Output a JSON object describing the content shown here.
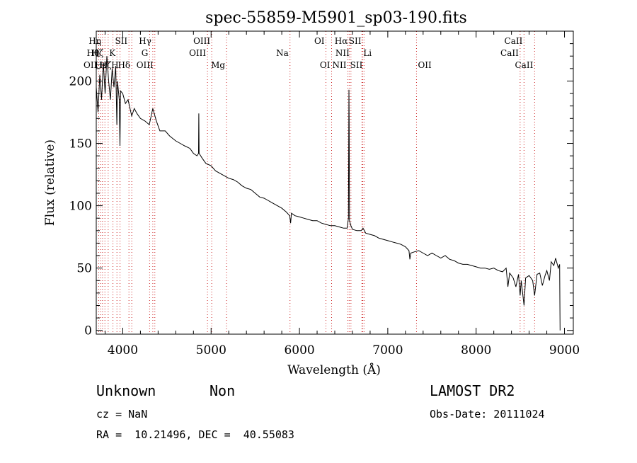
{
  "chart_data": {
    "type": "line",
    "title": "spec-55859-M5901_sp03-190.fits",
    "xlabel": "Wavelength (Å)",
    "ylabel": "Flux (relative)",
    "xlim": [
      3700,
      9100
    ],
    "ylim": [
      -3,
      240
    ],
    "xticks": [
      4000,
      5000,
      6000,
      7000,
      8000,
      9000
    ],
    "yticks": [
      0,
      50,
      100,
      150,
      200
    ],
    "grid": false,
    "series": [
      {
        "values": [
          [
            3700,
            195
          ],
          [
            3720,
            175
          ],
          [
            3740,
            205
          ],
          [
            3760,
            185
          ],
          [
            3780,
            215
          ],
          [
            3800,
            190
          ],
          [
            3820,
            220
          ],
          [
            3840,
            200
          ],
          [
            3860,
            185
          ],
          [
            3880,
            210
          ],
          [
            3900,
            195
          ],
          [
            3920,
            212
          ],
          [
            3933,
            165
          ],
          [
            3940,
            200
          ],
          [
            3960,
            185
          ],
          [
            3968,
            148
          ],
          [
            3975,
            192
          ],
          [
            4000,
            190
          ],
          [
            4030,
            182
          ],
          [
            4060,
            185
          ],
          [
            4101,
            172
          ],
          [
            4130,
            178
          ],
          [
            4160,
            174
          ],
          [
            4200,
            170
          ],
          [
            4250,
            168
          ],
          [
            4300,
            165
          ],
          [
            4340,
            178
          ],
          [
            4380,
            168
          ],
          [
            4420,
            160
          ],
          [
            4480,
            160
          ],
          [
            4530,
            156
          ],
          [
            4600,
            152
          ],
          [
            4650,
            150
          ],
          [
            4700,
            148
          ],
          [
            4760,
            146
          ],
          [
            4800,
            142
          ],
          [
            4840,
            140
          ],
          [
            4858,
            142
          ],
          [
            4861,
            174
          ],
          [
            4864,
            142
          ],
          [
            4900,
            138
          ],
          [
            4940,
            134
          ],
          [
            5000,
            132
          ],
          [
            5050,
            128
          ],
          [
            5100,
            126
          ],
          [
            5150,
            124
          ],
          [
            5200,
            122
          ],
          [
            5250,
            121
          ],
          [
            5300,
            119
          ],
          [
            5350,
            116
          ],
          [
            5400,
            114
          ],
          [
            5450,
            113
          ],
          [
            5500,
            110
          ],
          [
            5550,
            107
          ],
          [
            5600,
            106
          ],
          [
            5650,
            104
          ],
          [
            5700,
            102
          ],
          [
            5750,
            100
          ],
          [
            5800,
            98
          ],
          [
            5850,
            95
          ],
          [
            5890,
            92
          ],
          [
            5900,
            86
          ],
          [
            5910,
            94
          ],
          [
            5950,
            92
          ],
          [
            6000,
            91
          ],
          [
            6050,
            90
          ],
          [
            6100,
            89
          ],
          [
            6150,
            88
          ],
          [
            6200,
            88
          ],
          [
            6250,
            86
          ],
          [
            6300,
            85
          ],
          [
            6350,
            84
          ],
          [
            6400,
            84
          ],
          [
            6450,
            83
          ],
          [
            6500,
            82
          ],
          [
            6540,
            82
          ],
          [
            6555,
            90
          ],
          [
            6560,
            193
          ],
          [
            6563,
            168
          ],
          [
            6567,
            88
          ],
          [
            6583,
            84
          ],
          [
            6600,
            81
          ],
          [
            6650,
            80
          ],
          [
            6700,
            80
          ],
          [
            6720,
            82
          ],
          [
            6750,
            78
          ],
          [
            6800,
            77
          ],
          [
            6850,
            76
          ],
          [
            6900,
            74
          ],
          [
            6950,
            73
          ],
          [
            7000,
            72
          ],
          [
            7050,
            71
          ],
          [
            7100,
            70
          ],
          [
            7150,
            69
          ],
          [
            7200,
            67
          ],
          [
            7240,
            64
          ],
          [
            7250,
            57
          ],
          [
            7260,
            62
          ],
          [
            7300,
            63
          ],
          [
            7350,
            64
          ],
          [
            7400,
            62
          ],
          [
            7450,
            60
          ],
          [
            7500,
            62
          ],
          [
            7550,
            60
          ],
          [
            7600,
            58
          ],
          [
            7650,
            60
          ],
          [
            7700,
            57
          ],
          [
            7750,
            56
          ],
          [
            7800,
            54
          ],
          [
            7850,
            53
          ],
          [
            7900,
            53
          ],
          [
            7950,
            52
          ],
          [
            8000,
            51
          ],
          [
            8050,
            50
          ],
          [
            8100,
            50
          ],
          [
            8150,
            49
          ],
          [
            8200,
            50
          ],
          [
            8250,
            48
          ],
          [
            8300,
            47
          ],
          [
            8340,
            50
          ],
          [
            8360,
            35
          ],
          [
            8380,
            46
          ],
          [
            8420,
            42
          ],
          [
            8450,
            35
          ],
          [
            8480,
            45
          ],
          [
            8498,
            28
          ],
          [
            8510,
            40
          ],
          [
            8542,
            20
          ],
          [
            8560,
            42
          ],
          [
            8600,
            44
          ],
          [
            8640,
            40
          ],
          [
            8662,
            28
          ],
          [
            8690,
            45
          ],
          [
            8720,
            46
          ],
          [
            8750,
            36
          ],
          [
            8780,
            44
          ],
          [
            8800,
            48
          ],
          [
            8830,
            40
          ],
          [
            8850,
            55
          ],
          [
            8880,
            52
          ],
          [
            8900,
            58
          ],
          [
            8930,
            50
          ],
          [
            8945,
            53
          ],
          [
            8950,
            0
          ]
        ]
      }
    ],
    "lines": [
      {
        "wavelength": 3727,
        "label": "OII",
        "row": 3,
        "side": "left"
      },
      {
        "wavelength": 3750,
        "label": "Hθ",
        "row": 2,
        "side": "left"
      },
      {
        "wavelength": 3771,
        "label": "Hη",
        "row": 1,
        "side": "left"
      },
      {
        "wavelength": 3798,
        "label": "Hζ",
        "row": 2,
        "side": "left"
      },
      {
        "wavelength": 3835,
        "label": "Hε",
        "row": 3,
        "side": "left"
      },
      {
        "wavelength": 3889,
        "label": "Hζ",
        "row": 3,
        "side": "left"
      },
      {
        "wavelength": 3934,
        "label": "K",
        "row": 2,
        "side": "left"
      },
      {
        "wavelength": 3969,
        "label": "H",
        "row": 3,
        "side": "left"
      },
      {
        "wavelength": 4070,
        "label": "SII",
        "row": 1,
        "side": "left"
      },
      {
        "wavelength": 4102,
        "label": "Hδ",
        "row": 3,
        "side": "left"
      },
      {
        "wavelength": 4304,
        "label": "G",
        "row": 2,
        "side": "left"
      },
      {
        "wavelength": 4340,
        "label": "Hγ",
        "row": 1,
        "side": "left"
      },
      {
        "wavelength": 4363,
        "label": "OIII",
        "row": 3,
        "side": "left"
      },
      {
        "wavelength": 4959,
        "label": "OIII",
        "row": 2,
        "side": "left"
      },
      {
        "wavelength": 5007,
        "label": "OIII",
        "row": 1,
        "side": "left"
      },
      {
        "wavelength": 5175,
        "label": "Mg",
        "row": 3,
        "side": "left"
      },
      {
        "wavelength": 5893,
        "label": "Na",
        "row": 2,
        "side": "left"
      },
      {
        "wavelength": 6300,
        "label": "OI",
        "row": 1,
        "side": "left"
      },
      {
        "wavelength": 6364,
        "label": "OI",
        "row": 3,
        "side": "left"
      },
      {
        "wavelength": 6548,
        "label": "NII",
        "row": 3,
        "side": "left"
      },
      {
        "wavelength": 6563,
        "label": "Hα",
        "row": 1,
        "side": "left"
      },
      {
        "wavelength": 6583,
        "label": "NII",
        "row": 2,
        "side": "left"
      },
      {
        "wavelength": 6707,
        "label": "Li",
        "row": 2,
        "side": "right"
      },
      {
        "wavelength": 6716,
        "label": "SII",
        "row": 1,
        "side": "left"
      },
      {
        "wavelength": 6731,
        "label": "SII",
        "row": 3,
        "side": "left"
      },
      {
        "wavelength": 7325,
        "label": "OII",
        "row": 3,
        "side": "right"
      },
      {
        "wavelength": 8498,
        "label": "CaII",
        "row": 2,
        "side": "left"
      },
      {
        "wavelength": 8542,
        "label": "CaII",
        "row": 1,
        "side": "left"
      },
      {
        "wavelength": 8662,
        "label": "CaII",
        "row": 3,
        "side": "left"
      }
    ]
  },
  "info": {
    "class": "Unknown",
    "subclass": "Non",
    "survey": "LAMOST DR2",
    "redshift": "cz = NaN",
    "obs_date": "Obs-Date: 20111024",
    "coords": "RA =  10.21496, DEC =  40.55083"
  }
}
